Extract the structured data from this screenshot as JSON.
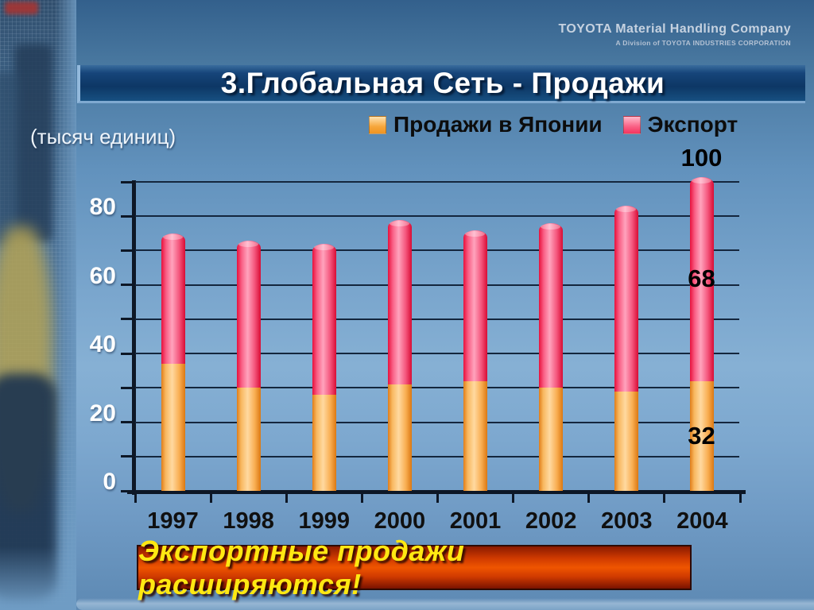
{
  "brand": {
    "name": "TOYOTA Material Handling Company",
    "division": "A Division of TOYOTA INDUSTRIES CORPORATION"
  },
  "slide_title": "3.Глобальная Сеть - Продажи",
  "units_label": "(тысяч единиц)",
  "callout": "Экспортные продажи расширяются!",
  "colors": {
    "japan_bar": "#f9a13c",
    "export_bar": "#f94d74",
    "title_bar_bg": "#0d3765",
    "callout_bg": "#d33c00",
    "callout_text": "#ffe812",
    "annotation_text": "#000000"
  },
  "chart_data": {
    "type": "bar",
    "stacked": true,
    "title": "",
    "xlabel": "",
    "ylabel": "(тысяч единиц)",
    "categories": [
      "1997",
      "1998",
      "1999",
      "2000",
      "2001",
      "2002",
      "2003",
      "2004"
    ],
    "series": [
      {
        "name": "Продажи в Японии",
        "color": "#f9a13c",
        "values": [
          37,
          30,
          28,
          31,
          32,
          30,
          29,
          32
        ]
      },
      {
        "name": "Экспорт",
        "color": "#f94d74",
        "values": [
          38,
          43,
          44,
          48,
          44,
          48,
          54,
          68
        ]
      }
    ],
    "totals": [
      75,
      73,
      72,
      79,
      76,
      78,
      83,
      100
    ],
    "ylim": [
      0,
      90
    ],
    "ytick_step": 10,
    "ytick_labels": [
      "0",
      "20",
      "40",
      "60",
      "80"
    ],
    "grid": true,
    "legend_position": "top",
    "bar_clip_max": 91.5,
    "annotations": [
      {
        "text": "100",
        "category": "2004",
        "placement": "above"
      },
      {
        "text": "68",
        "category": "2004",
        "placement": "series",
        "series": "Экспорт"
      },
      {
        "text": "32",
        "category": "2004",
        "placement": "series",
        "series": "Продажи в Японии"
      }
    ]
  }
}
